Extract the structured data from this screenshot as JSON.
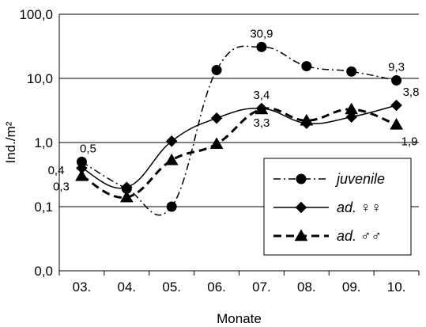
{
  "chart_data": {
    "type": "line",
    "ylabel": "Ind./m²",
    "xlabel": "Monate",
    "y_scale": "log",
    "ylim": [
      0.01,
      100
    ],
    "yticks": [
      {
        "value": 0.01,
        "label": "0,0"
      },
      {
        "value": 0.1,
        "label": "0,1"
      },
      {
        "value": 1,
        "label": "1,0"
      },
      {
        "value": 10,
        "label": "10,0"
      },
      {
        "value": 100,
        "label": "100,0"
      }
    ],
    "categories": [
      "03.",
      "04.",
      "05.",
      "06.",
      "07.",
      "08.",
      "09.",
      "10."
    ],
    "grid": "horizontal major gridlines on",
    "legend_placement": "bottom-right",
    "series": [
      {
        "name": "juvenile",
        "style": "dash-dot",
        "marker": "circle",
        "color": "#000000",
        "values": [
          0.5,
          0.19,
          0.1,
          13.5,
          30.9,
          15.5,
          12.8,
          9.3
        ]
      },
      {
        "name": "ad. ♀♀",
        "style": "solid",
        "marker": "diamond",
        "color": "#000000",
        "values": [
          0.4,
          0.2,
          1.05,
          2.4,
          3.4,
          2.0,
          2.5,
          3.8
        ]
      },
      {
        "name": "ad. ♂♂",
        "style": "dashed",
        "marker": "triangle",
        "color": "#000000",
        "values": [
          0.3,
          0.14,
          0.53,
          0.95,
          3.3,
          2.2,
          3.3,
          1.9
        ]
      }
    ],
    "data_labels": [
      {
        "text": "0,5",
        "series": 0,
        "index": 0,
        "pos": "above"
      },
      {
        "text": "0,4",
        "series": 1,
        "index": 0,
        "pos": "left"
      },
      {
        "text": "0,3",
        "series": 2,
        "index": 0,
        "pos": "below"
      },
      {
        "text": "30,9",
        "series": 0,
        "index": 4,
        "pos": "above"
      },
      {
        "text": "3,4",
        "series": 1,
        "index": 4,
        "pos": "above"
      },
      {
        "text": "3,3",
        "series": 2,
        "index": 4,
        "pos": "below"
      },
      {
        "text": "9,3",
        "series": 0,
        "index": 7,
        "pos": "above"
      },
      {
        "text": "3,8",
        "series": 1,
        "index": 7,
        "pos": "above-right"
      },
      {
        "text": "1,9",
        "series": 2,
        "index": 7,
        "pos": "below-right"
      }
    ]
  }
}
